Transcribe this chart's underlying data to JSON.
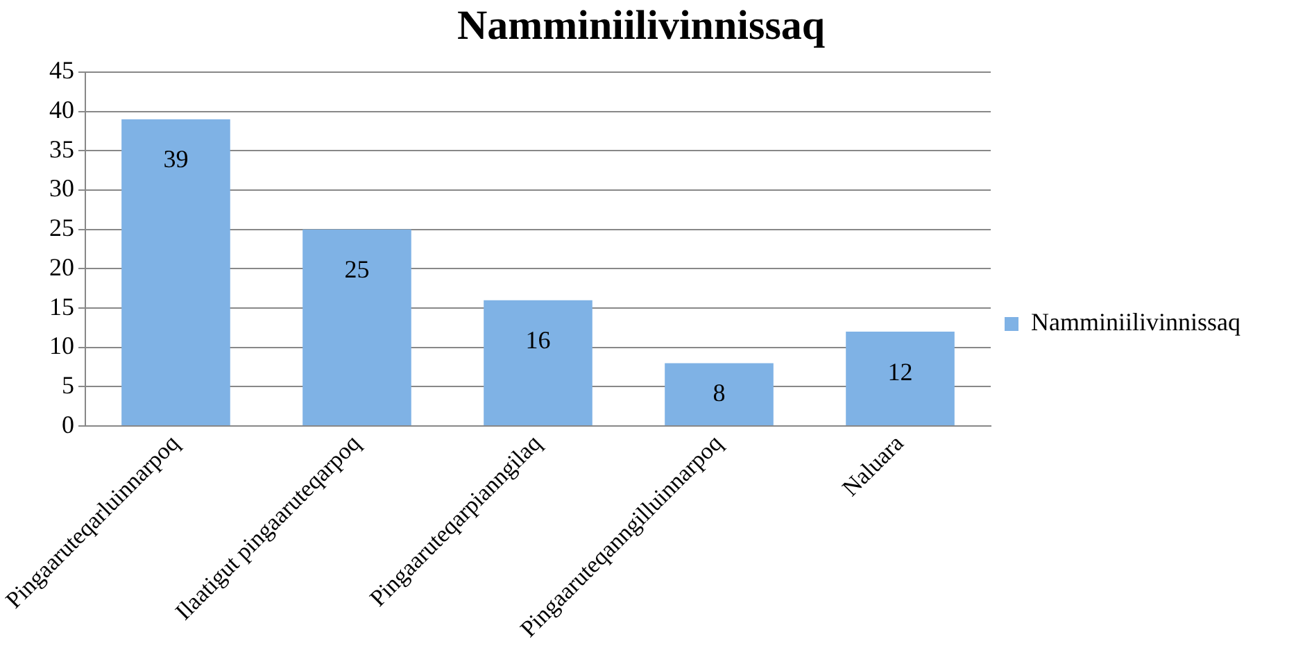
{
  "chart_data": {
    "type": "bar",
    "title": "Namminiilivinnissaq",
    "categories": [
      "Pingaaruteqarluinnarpoq",
      "Ilaatigut pingaaruteqarpoq",
      "Pingaaruteqarpianngilaq",
      "Pingaaruteqanngilluinnarpoq",
      "Naluara"
    ],
    "series": [
      {
        "name": "Namminiilivinnissaq",
        "color": "#7fb2e5",
        "values": [
          39,
          25,
          16,
          8,
          12
        ]
      }
    ],
    "ylim": [
      0,
      45
    ],
    "yticks": [
      0,
      5,
      10,
      15,
      20,
      25,
      30,
      35,
      40,
      45
    ],
    "grid": "y",
    "legend": "right",
    "data_labels": true
  }
}
